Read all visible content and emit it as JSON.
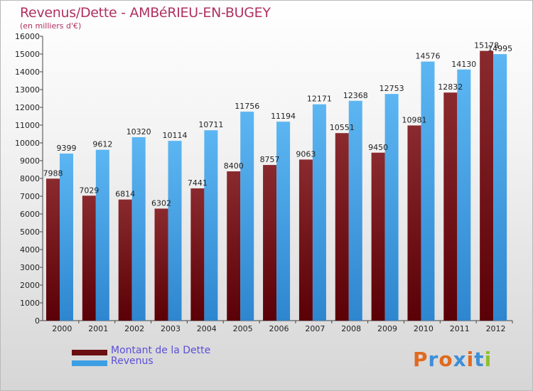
{
  "header": {
    "title": "Revenus/Dette - AMBéRIEU-EN-BUGEY",
    "subtitle": "(en milliers d'€)"
  },
  "legend": [
    {
      "label": "Montant de la Dette",
      "color": "#6b0f12"
    },
    {
      "label": "Revenus",
      "color": "#3d9fe3"
    }
  ],
  "logo": {
    "text": "Proxiti",
    "colors": [
      "#e2691e",
      "#3e8ed8",
      "#e2691e",
      "#3e8ed8",
      "#e2691e",
      "#3e8ed8",
      "#8fbf2f"
    ]
  },
  "chart_data": {
    "type": "bar",
    "title": "Revenus/Dette - AMBéRIEU-EN-BUGEY",
    "subtitle": "(en milliers d'€)",
    "xlabel": "",
    "ylabel": "",
    "ylim": [
      0,
      16000
    ],
    "yticks": [
      0,
      1000,
      2000,
      3000,
      4000,
      5000,
      6000,
      7000,
      8000,
      9000,
      10000,
      11000,
      12000,
      13000,
      14000,
      15000,
      16000
    ],
    "grid": false,
    "legend_position": "bottom-left",
    "categories": [
      "2000",
      "2001",
      "2002",
      "2003",
      "2004",
      "2005",
      "2006",
      "2007",
      "2008",
      "2009",
      "2010",
      "2011",
      "2012"
    ],
    "series": [
      {
        "name": "Montant de la Dette",
        "color": "#6b0f12",
        "values": [
          7988,
          7029,
          6814,
          6302,
          7441,
          8400,
          8757,
          9063,
          10551,
          9450,
          10981,
          12832,
          15178
        ],
        "labels": [
          "7988",
          "7029",
          "6814",
          "6302",
          "7441",
          "8400",
          "8757",
          "9063",
          "10551",
          "9450",
          "10981",
          "12832",
          "15178"
        ]
      },
      {
        "name": "Revenus",
        "color": "#3d9fe3",
        "values": [
          9399,
          9612,
          10320,
          10114,
          10711,
          11756,
          11194,
          12171,
          12368,
          12753,
          14576,
          14130,
          14995
        ],
        "labels": [
          "9399",
          "9612",
          "10320",
          "10114",
          "10711",
          "11756",
          "11194",
          "12171",
          "12368",
          "12753",
          "14576",
          "14130",
          "14995"
        ]
      }
    ]
  }
}
